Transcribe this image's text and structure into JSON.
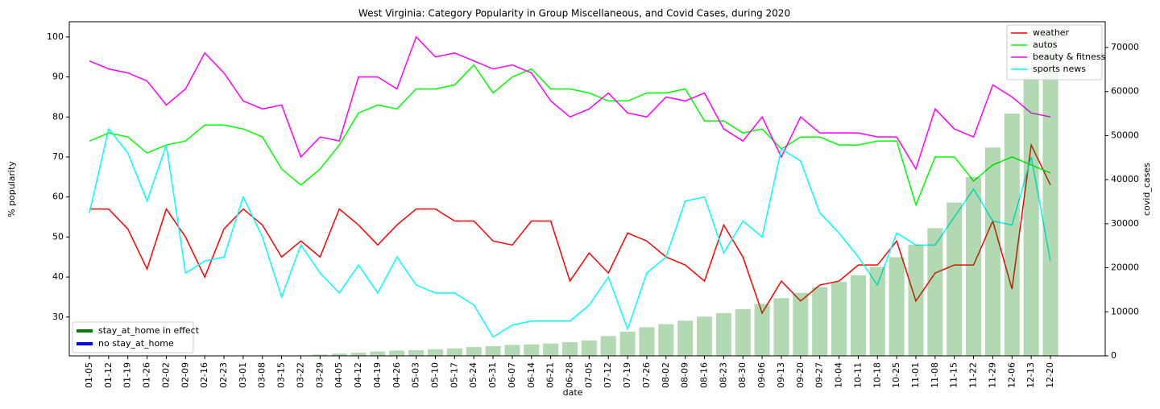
{
  "chart_data": {
    "type": "line",
    "title": "West Virginia: Category Popularity in Group Miscellaneous, and Covid Cases, during 2020",
    "x_label": "date",
    "y_label": "% popularity",
    "y2_label": "covid_cases",
    "categories": [
      "01-05",
      "01-12",
      "01-19",
      "01-26",
      "02-02",
      "02-09",
      "02-16",
      "02-23",
      "03-01",
      "03-08",
      "03-15",
      "03-22",
      "03-29",
      "04-05",
      "04-12",
      "04-19",
      "04-26",
      "05-03",
      "05-10",
      "05-17",
      "05-24",
      "05-31",
      "06-07",
      "06-14",
      "06-21",
      "06-28",
      "07-05",
      "07-12",
      "07-19",
      "07-26",
      "08-02",
      "08-09",
      "08-16",
      "08-23",
      "08-30",
      "09-06",
      "09-13",
      "09-20",
      "09-27",
      "10-04",
      "10-11",
      "10-18",
      "10-25",
      "11-01",
      "11-08",
      "11-15",
      "11-22",
      "11-29",
      "12-06",
      "12-13",
      "12-20"
    ],
    "ylim": [
      20.3,
      103.8
    ],
    "yticks": [
      30,
      40,
      50,
      60,
      70,
      80,
      90,
      100
    ],
    "y2lim": [
      0,
      75850
    ],
    "y2ticks": [
      0,
      10000,
      20000,
      30000,
      40000,
      50000,
      60000,
      70000
    ],
    "series": [
      {
        "name": "weather",
        "color": "#ff0000",
        "values": [
          57,
          57,
          52,
          42,
          57,
          50,
          40,
          52,
          57,
          53,
          45,
          49,
          45,
          57,
          53,
          48,
          53,
          57,
          57,
          54,
          54,
          49,
          48,
          54,
          54,
          39,
          46,
          41,
          51,
          49,
          45,
          43,
          39,
          53,
          45,
          31,
          39,
          34,
          38,
          39,
          43,
          43,
          49,
          34,
          41,
          43,
          43,
          54,
          37,
          73,
          63
        ]
      },
      {
        "name": "autos",
        "color": "#00ff00",
        "values": [
          74,
          76,
          75,
          71,
          73,
          74,
          78,
          78,
          77,
          75,
          67,
          63,
          67,
          73,
          81,
          83,
          82,
          87,
          87,
          88,
          93,
          86,
          90,
          92,
          87,
          87,
          86,
          84,
          84,
          86,
          86,
          87,
          79,
          79,
          76,
          77,
          72,
          75,
          75,
          73,
          73,
          74,
          74,
          58,
          70,
          70,
          64,
          68,
          70,
          68,
          66
        ]
      },
      {
        "name": "beauty & fitness",
        "color": "#ff00ff",
        "values": [
          94,
          92,
          91,
          89,
          83,
          87,
          96,
          91,
          84,
          82,
          83,
          70,
          75,
          74,
          90,
          90,
          87,
          100,
          95,
          96,
          94,
          92,
          93,
          91,
          84,
          80,
          82,
          86,
          81,
          80,
          85,
          84,
          86,
          77,
          74,
          80,
          70,
          80,
          76,
          76,
          76,
          75,
          75,
          67,
          82,
          77,
          75,
          88,
          85,
          81,
          80
        ]
      },
      {
        "name": "sports news",
        "color": "#00ffff",
        "values": [
          56,
          77,
          71,
          59,
          73,
          41,
          44,
          45,
          60,
          50,
          35,
          48,
          41,
          36,
          43,
          36,
          45,
          38,
          36,
          36,
          33,
          25,
          28,
          29,
          29,
          29,
          33,
          40,
          27,
          41,
          45,
          59,
          60,
          46,
          54,
          50,
          72,
          69,
          56,
          51,
          45,
          38,
          51,
          48,
          48,
          55,
          62,
          54,
          53,
          70,
          44
        ]
      },
      {
        "name": "covid_cases",
        "type": "bar",
        "axis": "y2",
        "color": "#008000",
        "values": [
          0,
          0,
          0,
          0,
          0,
          0,
          0,
          0,
          0,
          0,
          0,
          100,
          300,
          500,
          700,
          1000,
          1200,
          1300,
          1500,
          1700,
          2000,
          2200,
          2500,
          2600,
          2800,
          3100,
          3500,
          4500,
          5500,
          6500,
          7200,
          8000,
          8900,
          9700,
          10600,
          11800,
          13100,
          14300,
          15600,
          16800,
          18300,
          20200,
          22400,
          25200,
          29000,
          34800,
          40600,
          47300,
          55000,
          63200,
          72700
        ]
      }
    ],
    "legend": "upper right",
    "legend2": {
      "position": "lower left",
      "items": [
        {
          "name": "stay_at_home in effect",
          "color": "#008000"
        },
        {
          "name": "no stay_at_home",
          "color": "#0000ff"
        }
      ]
    }
  }
}
